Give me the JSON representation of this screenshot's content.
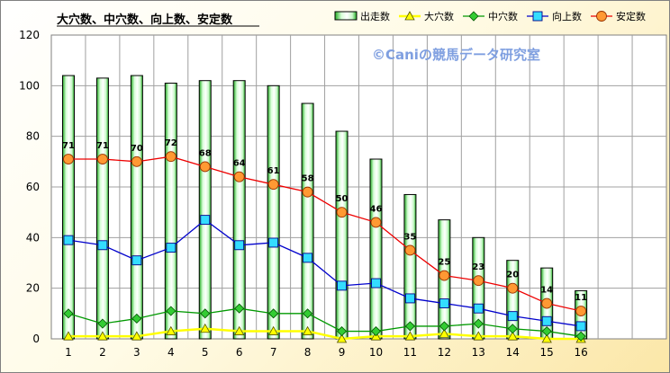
{
  "chart_data": {
    "type": "bar",
    "title": "大穴数、中穴数、向上数、安定数",
    "watermark": "©Caniの競馬データ研究室",
    "categories": [
      "1",
      "2",
      "3",
      "4",
      "5",
      "6",
      "7",
      "8",
      "9",
      "10",
      "11",
      "12",
      "13",
      "14",
      "15",
      "16"
    ],
    "ylim": [
      0,
      120
    ],
    "yticks": [
      0,
      20,
      40,
      60,
      80,
      100,
      120
    ],
    "grid": true,
    "legend_position": "top-right",
    "series": [
      {
        "name": "出走数",
        "type": "bar",
        "color": "#66dd66",
        "values": [
          104,
          103,
          104,
          101,
          102,
          102,
          100,
          93,
          82,
          71,
          57,
          47,
          40,
          31,
          28,
          19
        ]
      },
      {
        "name": "大穴数",
        "type": "line",
        "marker": "triangle",
        "color": "#ffff00",
        "values": [
          1,
          1,
          1,
          3,
          4,
          3,
          3,
          3,
          0,
          1,
          1,
          2,
          1,
          1,
          0,
          0
        ]
      },
      {
        "name": "中穴数",
        "type": "line",
        "marker": "diamond",
        "color": "#009900",
        "values": [
          10,
          6,
          8,
          11,
          10,
          12,
          10,
          10,
          3,
          3,
          5,
          5,
          6,
          4,
          3,
          1
        ]
      },
      {
        "name": "向上数",
        "type": "line",
        "marker": "square",
        "color": "#0000cc",
        "values": [
          39,
          37,
          31,
          36,
          47,
          37,
          38,
          32,
          21,
          22,
          16,
          14,
          12,
          9,
          7,
          5
        ]
      },
      {
        "name": "安定数",
        "type": "line",
        "marker": "circle",
        "color": "#ee0000",
        "values": [
          71,
          71,
          70,
          72,
          68,
          64,
          61,
          58,
          50,
          46,
          35,
          25,
          23,
          20,
          14,
          11
        ],
        "data_labels": [
          "71",
          "71",
          "70",
          "72",
          "68",
          "64",
          "61",
          "58",
          "50",
          "46",
          "35",
          "25",
          "23",
          "20",
          "14",
          "11"
        ]
      }
    ]
  }
}
